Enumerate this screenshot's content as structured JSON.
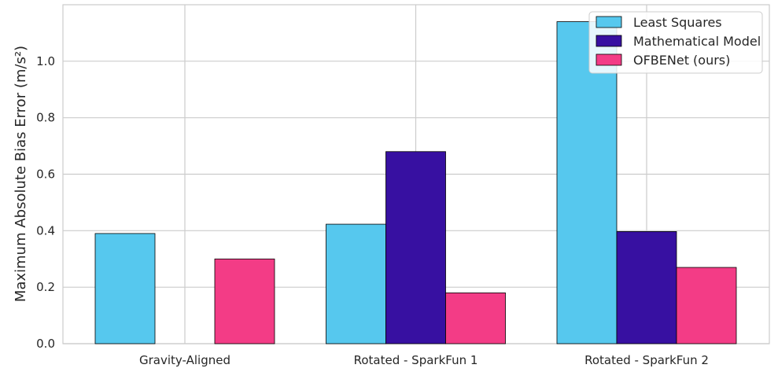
{
  "chart_data": {
    "type": "bar",
    "title": "",
    "xlabel": "",
    "ylabel": "Maximum Absolute Bias Error (m/s²)",
    "categories": [
      "Gravity-Aligned",
      "Rotated - SparkFun 1",
      "Rotated - SparkFun 2"
    ],
    "series": [
      {
        "name": "Least Squares",
        "color": "#56c8ee",
        "values": [
          0.39,
          0.423,
          1.14
        ]
      },
      {
        "name": "Mathematical Model",
        "color": "#3710a1",
        "values": [
          null,
          0.68,
          0.397
        ]
      },
      {
        "name": "OFBENet (ours)",
        "color": "#f33c86",
        "values": [
          0.3,
          0.18,
          0.27
        ]
      }
    ],
    "ylim": [
      0,
      1.2
    ],
    "yticks": [
      "0.0",
      "0.2",
      "0.4",
      "0.6",
      "0.8",
      "1.0"
    ],
    "grid": true,
    "legend_position": "top-right"
  }
}
